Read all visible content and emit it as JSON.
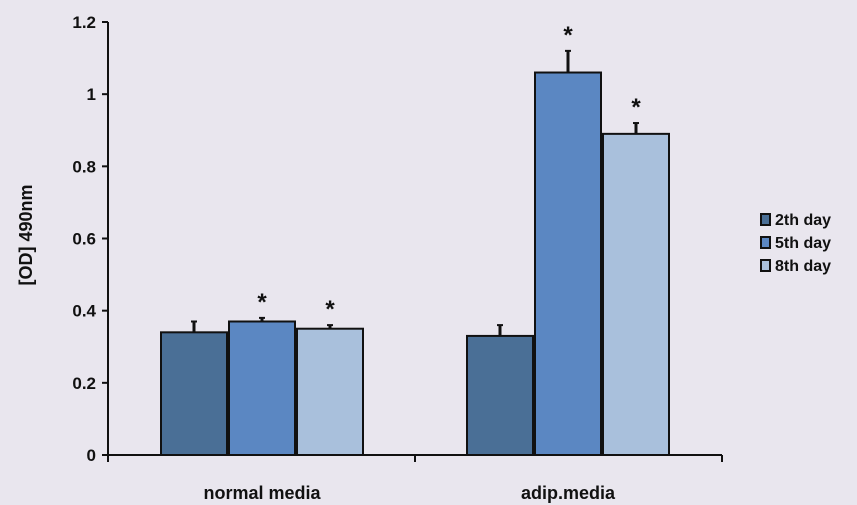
{
  "chart_data": {
    "type": "bar",
    "title": "",
    "xlabel": "",
    "ylabel": "[OD] 490nm",
    "ylim": [
      0,
      1.2
    ],
    "yticks": [
      0,
      0.2,
      0.4,
      0.6,
      0.8,
      1,
      1.2
    ],
    "categories": [
      "normal media",
      "adip.media"
    ],
    "series": [
      {
        "name": "2th day",
        "color": "#4a6f96",
        "values": [
          0.34,
          0.33
        ],
        "errors": [
          0.03,
          0.03
        ],
        "marks": [
          "",
          ""
        ]
      },
      {
        "name": "5th day",
        "color": "#5b87c2",
        "values": [
          0.37,
          1.06
        ],
        "errors": [
          0.01,
          0.06
        ],
        "marks": [
          "*",
          "*"
        ]
      },
      {
        "name": "8th day",
        "color": "#a9c0dc",
        "values": [
          0.35,
          0.89
        ],
        "errors": [
          0.01,
          0.03
        ],
        "marks": [
          "*",
          "*"
        ]
      }
    ],
    "legend": "right",
    "grid": false
  }
}
